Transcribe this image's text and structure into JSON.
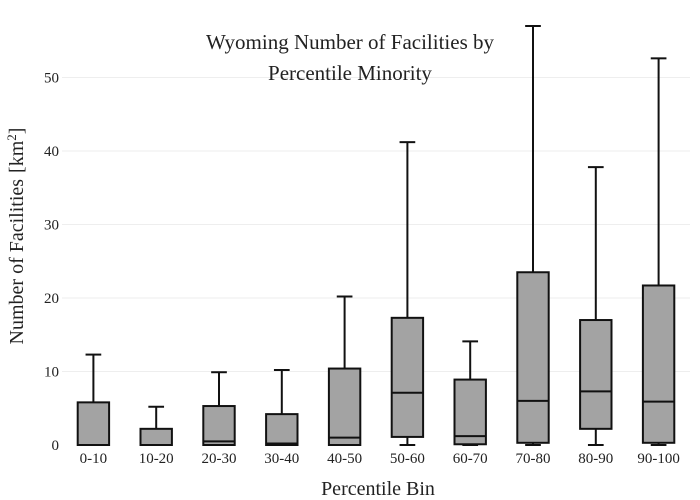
{
  "chart_data": {
    "type": "box",
    "title": "Wyoming Number of Facilities by",
    "title_line2": "Percentile Minority",
    "xlabel": "Percentile Bin",
    "ylabel": "Number of Facilities",
    "ylabel_unit_base": "km",
    "ylabel_unit_exp": "2",
    "ylim": [
      0,
      57
    ],
    "yticks": [
      0,
      10,
      20,
      30,
      40,
      50
    ],
    "grid": true,
    "box_color": "#a3a3a3",
    "line_color": "#111111",
    "categories": [
      "0-10",
      "10-20",
      "20-30",
      "30-40",
      "40-50",
      "50-60",
      "60-70",
      "70-80",
      "80-90",
      "90-100"
    ],
    "boxes": [
      {
        "min": 0,
        "q1": 0,
        "median": 0,
        "q3": 5.8,
        "max": 12.3
      },
      {
        "min": 0,
        "q1": 0,
        "median": 0,
        "q3": 2.2,
        "max": 5.2
      },
      {
        "min": 0,
        "q1": 0,
        "median": 0.5,
        "q3": 5.3,
        "max": 9.9
      },
      {
        "min": 0,
        "q1": 0,
        "median": 0.2,
        "q3": 4.2,
        "max": 10.2
      },
      {
        "min": 0,
        "q1": 0,
        "median": 1.0,
        "q3": 10.4,
        "max": 20.2
      },
      {
        "min": 0,
        "q1": 1.1,
        "median": 7.1,
        "q3": 17.3,
        "max": 41.2
      },
      {
        "min": 0,
        "q1": 0.1,
        "median": 1.2,
        "q3": 8.9,
        "max": 14.1
      },
      {
        "min": 0,
        "q1": 0.3,
        "median": 6.0,
        "q3": 23.5,
        "max": 57.0
      },
      {
        "min": 0,
        "q1": 2.2,
        "median": 7.3,
        "q3": 17.0,
        "max": 37.8
      },
      {
        "min": 0,
        "q1": 0.3,
        "median": 5.9,
        "q3": 21.7,
        "max": 52.6
      }
    ]
  }
}
